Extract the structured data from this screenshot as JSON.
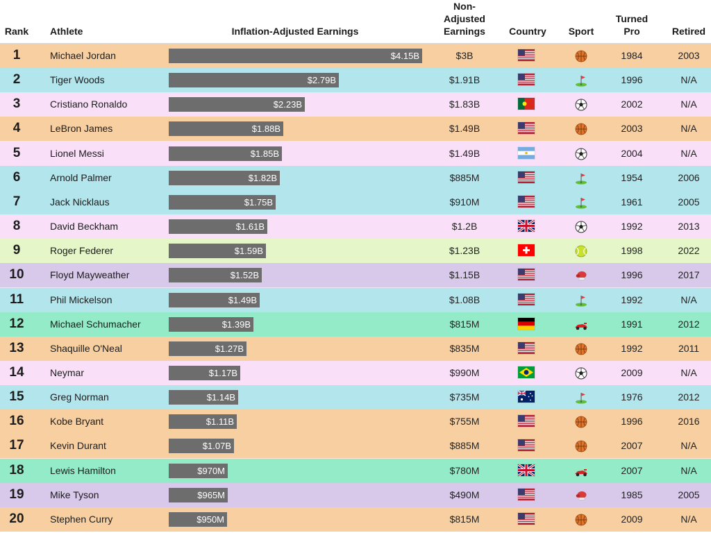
{
  "header": {
    "rank": "Rank",
    "athlete": "Athlete",
    "earnings": "Inflation-Adjusted Earnings",
    "non_adjusted_line1": "Non-",
    "non_adjusted_line2": "Adjusted",
    "non_adjusted_line3": "Earnings",
    "country": "Country",
    "sport": "Sport",
    "turned_pro_line1": "Turned",
    "turned_pro_line2": "Pro",
    "retired": "Retired"
  },
  "colors": {
    "bar": "#6d6d6d",
    "basketball": "#f8cfa1",
    "golf": "#b3e5ec",
    "soccer": "#f9dff8",
    "tennis": "#e5f6c9",
    "boxing": "#d8c8ea",
    "f1": "#93ecc7"
  },
  "chart_data": {
    "type": "table",
    "x_unit": "billions USD",
    "xlim": [
      0,
      4.15
    ],
    "rows": [
      {
        "rank": "1",
        "athlete": "Michael Jordan",
        "value": 4.15,
        "label": "$4.15B",
        "non_adjusted": "$3B",
        "country": "usa",
        "sport": "basketball",
        "turned_pro": "1984",
        "retired": "2003"
      },
      {
        "rank": "2",
        "athlete": "Tiger Woods",
        "value": 2.79,
        "label": "$2.79B",
        "non_adjusted": "$1.91B",
        "country": "usa",
        "sport": "golf",
        "turned_pro": "1996",
        "retired": "N/A"
      },
      {
        "rank": "3",
        "athlete": "Cristiano Ronaldo",
        "value": 2.23,
        "label": "$2.23B",
        "non_adjusted": "$1.83B",
        "country": "portugal",
        "sport": "soccer",
        "turned_pro": "2002",
        "retired": "N/A"
      },
      {
        "rank": "4",
        "athlete": "LeBron James",
        "value": 1.88,
        "label": "$1.88B",
        "non_adjusted": "$1.49B",
        "country": "usa",
        "sport": "basketball",
        "turned_pro": "2003",
        "retired": "N/A"
      },
      {
        "rank": "5",
        "athlete": "Lionel Messi",
        "value": 1.85,
        "label": "$1.85B",
        "non_adjusted": "$1.49B",
        "country": "argentina",
        "sport": "soccer",
        "turned_pro": "2004",
        "retired": "N/A"
      },
      {
        "rank": "6",
        "athlete": "Arnold Palmer",
        "value": 1.82,
        "label": "$1.82B",
        "non_adjusted": "$885M",
        "country": "usa",
        "sport": "golf",
        "turned_pro": "1954",
        "retired": "2006"
      },
      {
        "rank": "7",
        "athlete": "Jack Nicklaus",
        "value": 1.75,
        "label": "$1.75B",
        "non_adjusted": "$910M",
        "country": "usa",
        "sport": "golf",
        "turned_pro": "1961",
        "retired": "2005"
      },
      {
        "rank": "8",
        "athlete": "David Beckham",
        "value": 1.61,
        "label": "$1.61B",
        "non_adjusted": "$1.2B",
        "country": "uk",
        "sport": "soccer",
        "turned_pro": "1992",
        "retired": "2013"
      },
      {
        "rank": "9",
        "athlete": "Roger Federer",
        "value": 1.59,
        "label": "$1.59B",
        "non_adjusted": "$1.23B",
        "country": "switzerland",
        "sport": "tennis",
        "turned_pro": "1998",
        "retired": "2022"
      },
      {
        "rank": "10",
        "athlete": "Floyd Mayweather",
        "value": 1.52,
        "label": "$1.52B",
        "non_adjusted": "$1.15B",
        "country": "usa",
        "sport": "boxing",
        "turned_pro": "1996",
        "retired": "2017"
      },
      {
        "rank": "11",
        "athlete": "Phil Mickelson",
        "value": 1.49,
        "label": "$1.49B",
        "non_adjusted": "$1.08B",
        "country": "usa",
        "sport": "golf",
        "turned_pro": "1992",
        "retired": "N/A"
      },
      {
        "rank": "12",
        "athlete": "Michael Schumacher",
        "value": 1.39,
        "label": "$1.39B",
        "non_adjusted": "$815M",
        "country": "germany",
        "sport": "f1",
        "turned_pro": "1991",
        "retired": "2012"
      },
      {
        "rank": "13",
        "athlete": "Shaquille O'Neal",
        "value": 1.27,
        "label": "$1.27B",
        "non_adjusted": "$835M",
        "country": "usa",
        "sport": "basketball",
        "turned_pro": "1992",
        "retired": "2011"
      },
      {
        "rank": "14",
        "athlete": "Neymar",
        "value": 1.17,
        "label": "$1.17B",
        "non_adjusted": "$990M",
        "country": "brazil",
        "sport": "soccer",
        "turned_pro": "2009",
        "retired": "N/A"
      },
      {
        "rank": "15",
        "athlete": "Greg Norman",
        "value": 1.14,
        "label": "$1.14B",
        "non_adjusted": "$735M",
        "country": "australia",
        "sport": "golf",
        "turned_pro": "1976",
        "retired": "2012"
      },
      {
        "rank": "16",
        "athlete": "Kobe Bryant",
        "value": 1.11,
        "label": "$1.11B",
        "non_adjusted": "$755M",
        "country": "usa",
        "sport": "basketball",
        "turned_pro": "1996",
        "retired": "2016"
      },
      {
        "rank": "17",
        "athlete": "Kevin Durant",
        "value": 1.07,
        "label": "$1.07B",
        "non_adjusted": "$885M",
        "country": "usa",
        "sport": "basketball",
        "turned_pro": "2007",
        "retired": "N/A"
      },
      {
        "rank": "18",
        "athlete": "Lewis Hamilton",
        "value": 0.97,
        "label": "$970M",
        "non_adjusted": "$780M",
        "country": "uk",
        "sport": "f1",
        "turned_pro": "2007",
        "retired": "N/A"
      },
      {
        "rank": "19",
        "athlete": "Mike Tyson",
        "value": 0.965,
        "label": "$965M",
        "non_adjusted": "$490M",
        "country": "usa",
        "sport": "boxing",
        "turned_pro": "1985",
        "retired": "2005"
      },
      {
        "rank": "20",
        "athlete": "Stephen Curry",
        "value": 0.95,
        "label": "$950M",
        "non_adjusted": "$815M",
        "country": "usa",
        "sport": "basketball",
        "turned_pro": "2009",
        "retired": "N/A"
      }
    ]
  }
}
